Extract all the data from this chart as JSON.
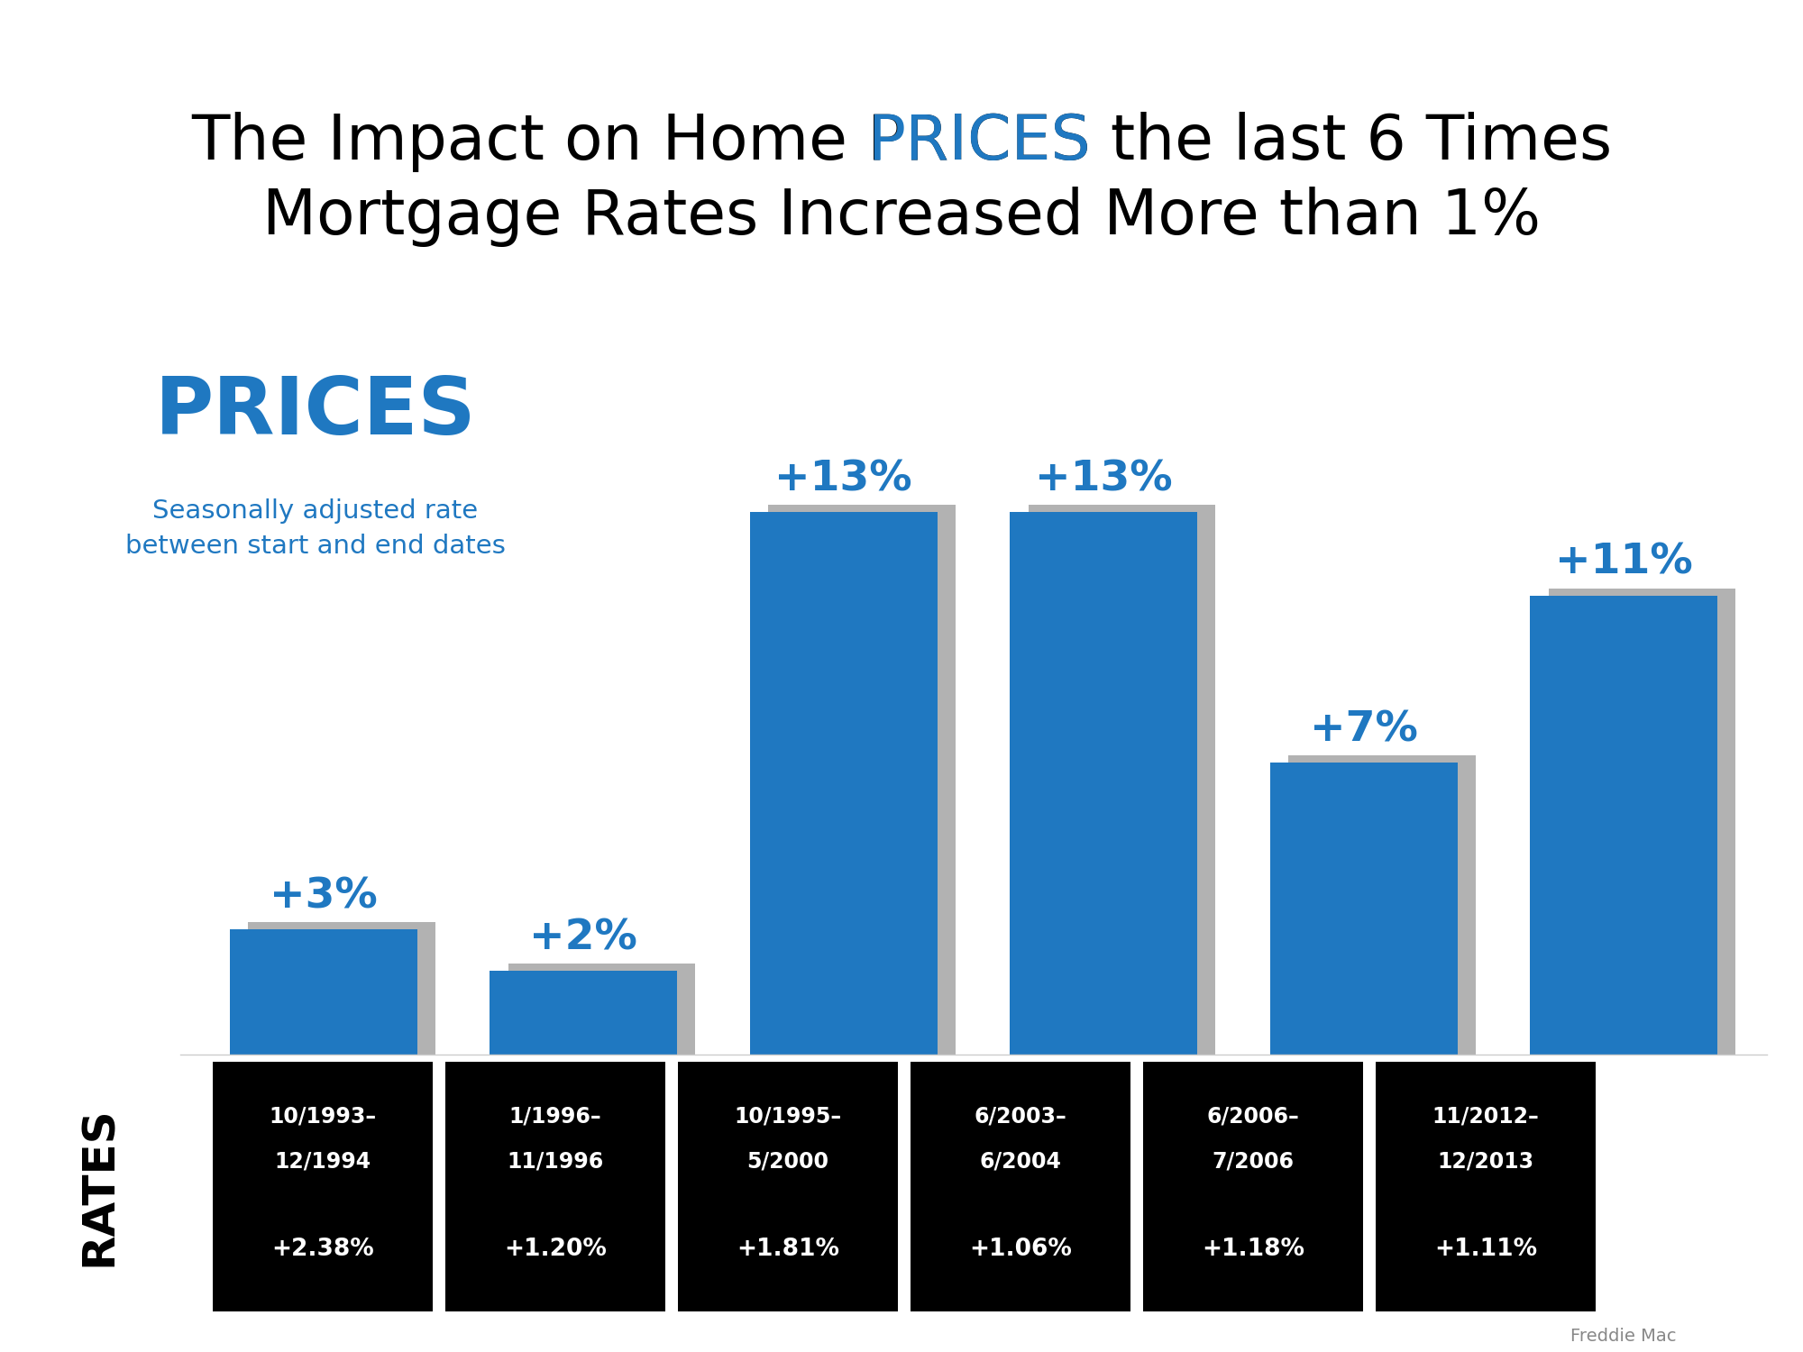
{
  "title_line1_black_pre": "The Impact on Home ",
  "title_line1_blue": "PRICES",
  "title_line1_black_post": " the last 6 Times",
  "title_line2": "Mortgage Rates Increased More than 1%",
  "prices_label": "PRICES",
  "subtitle_line1": "Seasonally adjusted rate",
  "subtitle_line2": "between start and end dates",
  "bar_values": [
    3,
    2,
    13,
    13,
    7,
    11
  ],
  "bar_labels": [
    "+3%",
    "+2%",
    "+13%",
    "+13%",
    "+7%",
    "+11%"
  ],
  "bar_color": "#1F78C1",
  "shadow_color": "#AAAAAA",
  "date_labels": [
    "10/1993–",
    "1/1996–",
    "10/1995–",
    "6/2003–",
    "6/2006–",
    "11/2012–"
  ],
  "date_labels2": [
    "12/1994",
    "11/1996",
    "5/2000",
    "6/2004",
    "7/2006",
    "12/2013"
  ],
  "rate_labels": [
    "+2.38%",
    "+1.20%",
    "+1.81%",
    "+1.06%",
    "+1.18%",
    "+1.11%"
  ],
  "rates_label": "RATES",
  "freddie_mac": "Freddie Mac",
  "blue_color": "#1F78C1",
  "black_color": "#000000",
  "white_color": "#FFFFFF",
  "bg_color": "#FFFFFF"
}
